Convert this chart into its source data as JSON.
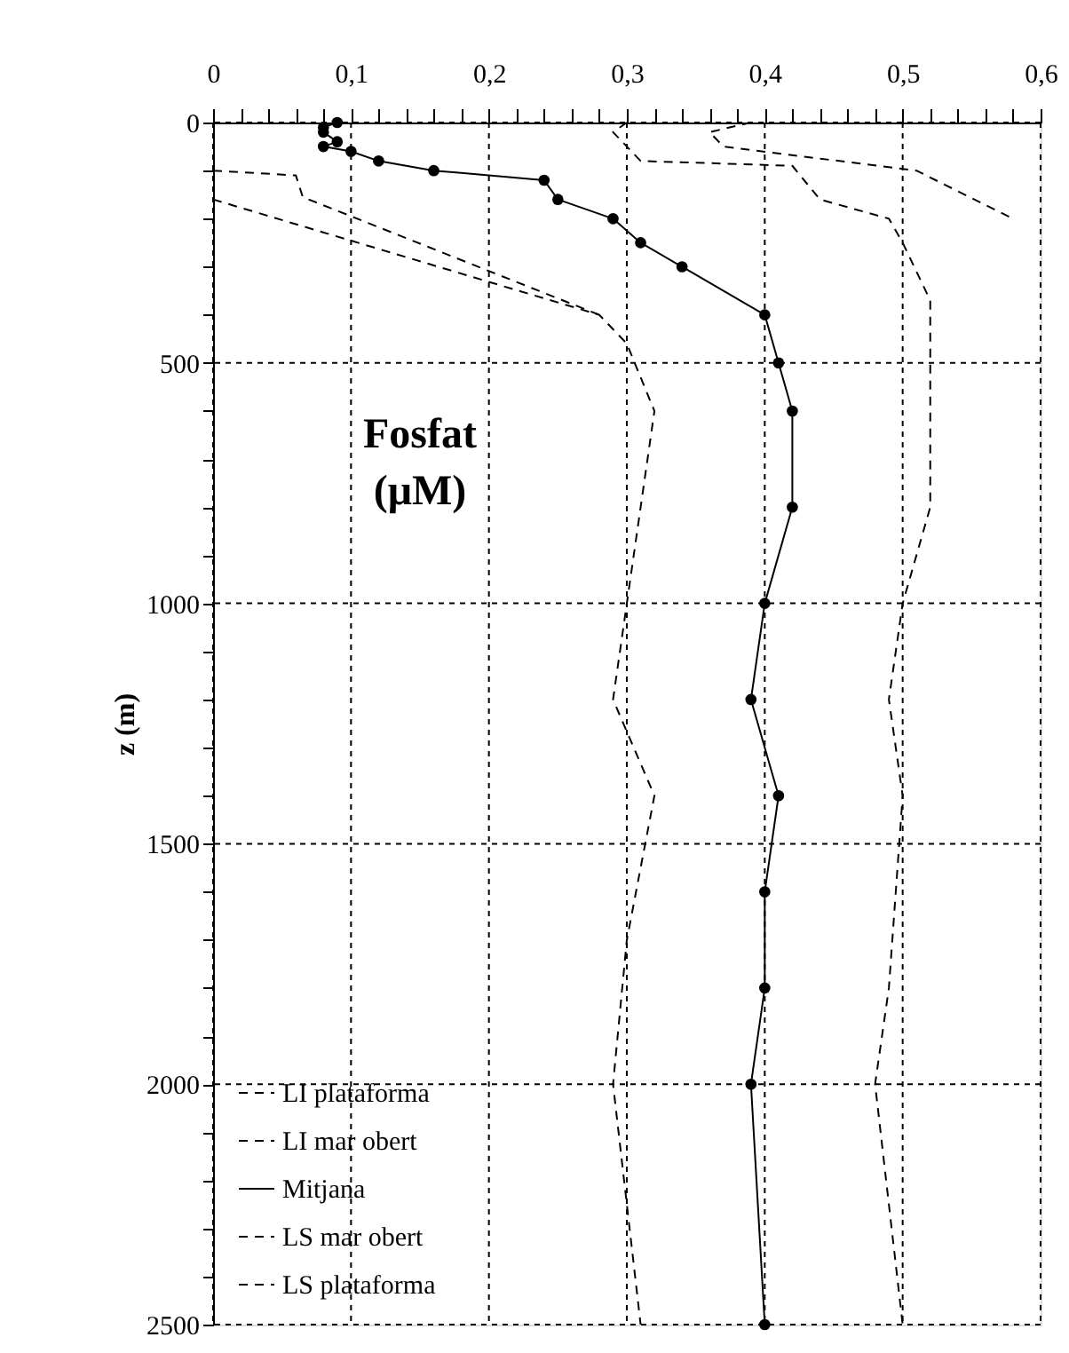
{
  "chart_data": {
    "type": "line",
    "annotations": [
      "Fosfat (μM)"
    ],
    "ylabel": "z (m)",
    "xlim": [
      0,
      0.6
    ],
    "ylim": [
      2500,
      0
    ],
    "xticks": [
      0,
      {
        "value": 0.02,
        "label": null
      },
      {
        "value": 0.04,
        "label": null
      },
      {
        "value": 0.06,
        "label": null
      },
      {
        "value": 0.08,
        "label": null
      },
      {
        "value": 0.1,
        "label": "0,1"
      },
      {
        "value": 0.12,
        "label": null
      },
      {
        "value": 0.14,
        "label": null
      },
      {
        "value": 0.16,
        "label": null
      },
      {
        "value": 0.18,
        "label": null
      },
      {
        "value": 0.2,
        "label": "0,2"
      },
      {
        "value": 0.22,
        "label": null
      },
      {
        "value": 0.24,
        "label": null
      },
      {
        "value": 0.26,
        "label": null
      },
      {
        "value": 0.28,
        "label": null
      },
      {
        "value": 0.3,
        "label": "0,3"
      },
      {
        "value": 0.32,
        "label": null
      },
      {
        "value": 0.34,
        "label": null
      },
      {
        "value": 0.36,
        "label": null
      },
      {
        "value": 0.38,
        "label": null
      },
      {
        "value": 0.4,
        "label": "0,4"
      },
      {
        "value": 0.42,
        "label": null
      },
      {
        "value": 0.44,
        "label": null
      },
      {
        "value": 0.46,
        "label": null
      },
      {
        "value": 0.48,
        "label": null
      },
      {
        "value": 0.5,
        "label": "0,5"
      },
      {
        "value": 0.52,
        "label": null
      },
      {
        "value": 0.54,
        "label": null
      },
      {
        "value": 0.56,
        "label": null
      },
      {
        "value": 0.58,
        "label": null
      },
      {
        "value": 0.6,
        "label": "0,6"
      }
    ],
    "yticks": [
      0,
      {
        "value": 100,
        "label": null
      },
      {
        "value": 200,
        "label": null
      },
      {
        "value": 300,
        "label": null
      },
      {
        "value": 400,
        "label": null
      },
      500,
      {
        "value": 600,
        "label": null
      },
      {
        "value": 700,
        "label": null
      },
      {
        "value": 800,
        "label": null
      },
      {
        "value": 900,
        "label": null
      },
      1000,
      {
        "value": 1100,
        "label": null
      },
      {
        "value": 1200,
        "label": null
      },
      {
        "value": 1300,
        "label": null
      },
      {
        "value": 1400,
        "label": null
      },
      1500,
      {
        "value": 1600,
        "label": null
      },
      {
        "value": 1700,
        "label": null
      },
      {
        "value": 1800,
        "label": null
      },
      {
        "value": 1900,
        "label": null
      },
      2000,
      {
        "value": 2100,
        "label": null
      },
      {
        "value": 2200,
        "label": null
      },
      {
        "value": 2300,
        "label": null
      },
      {
        "value": 2400,
        "label": null
      },
      2500
    ],
    "grid": true,
    "legend": "bottom left",
    "series": [
      {
        "name": "LI plataforma",
        "color": "#000000",
        "line_style": "dashed",
        "x": [
          0,
          0.06,
          0.065,
          0.28
        ],
        "values": [
          100,
          110,
          155,
          400
        ]
      },
      {
        "name": "LI mar obert",
        "color": "#000000",
        "line_style": "dashed",
        "x": [
          0,
          0.28,
          0.3,
          0.32,
          0.3,
          0.29,
          0.32,
          0.3,
          0.29,
          0.31
        ],
        "values": [
          160,
          400,
          460,
          600,
          1000,
          1200,
          1400,
          1700,
          2000,
          2500
        ]
      },
      {
        "name": "Mitjana",
        "color": "#000000",
        "line_style": "solid",
        "marker": "circle",
        "x": [
          0.09,
          0.08,
          0.08,
          0.09,
          0.08,
          0.1,
          0.12,
          0.16,
          0.24,
          0.25,
          0.29,
          0.31,
          0.34,
          0.4,
          0.41,
          0.42,
          0.42,
          0.4,
          0.39,
          0.41,
          0.4,
          0.4,
          0.39,
          0.4
        ],
        "values": [
          0,
          10,
          20,
          40,
          50,
          60,
          80,
          100,
          120,
          160,
          200,
          250,
          300,
          400,
          500,
          600,
          800,
          1000,
          1200,
          1400,
          1600,
          1800,
          2000,
          2500
        ]
      },
      {
        "name": "LS mar obert",
        "color": "#000000",
        "line_style": "dashed",
        "x": [
          0.3,
          0.29,
          0.31,
          0.42,
          0.44,
          0.49,
          0.5,
          0.52,
          0.52,
          0.52,
          0.5,
          0.49,
          0.5,
          0.49,
          0.48,
          0.5
        ],
        "values": [
          0,
          20,
          80,
          90,
          160,
          200,
          250,
          370,
          500,
          800,
          1000,
          1200,
          1400,
          1800,
          2000,
          2500
        ]
      },
      {
        "name": "LS plataforma",
        "color": "#000000",
        "line_style": "dashed",
        "x": [
          0.39,
          0.36,
          0.37,
          0.51,
          0.58
        ],
        "values": [
          0,
          20,
          50,
          100,
          200
        ]
      }
    ]
  }
}
